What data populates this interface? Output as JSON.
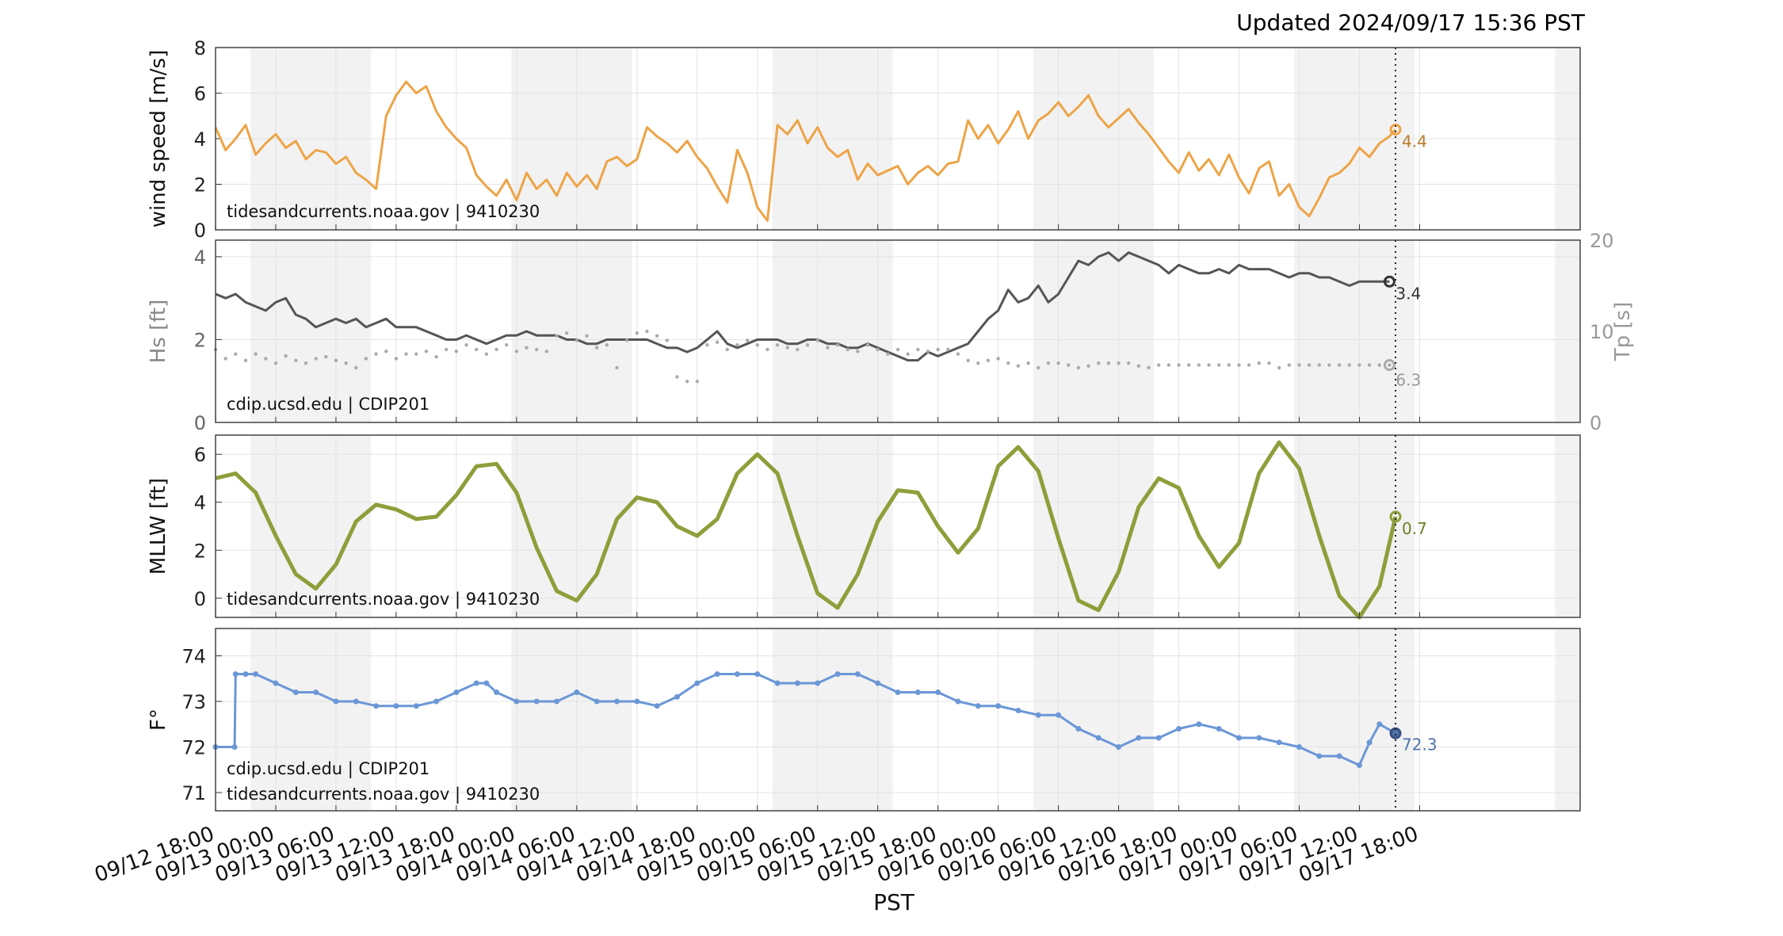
{
  "header": {
    "updated": "Updated 2024/09/17 15:36 PST"
  },
  "xaxis": {
    "label": "PST",
    "ticks": [
      "09/12 18:00",
      "09/13 00:00",
      "09/13 06:00",
      "09/13 12:00",
      "09/13 18:00",
      "09/14 00:00",
      "09/14 06:00",
      "09/14 12:00",
      "09/14 18:00",
      "09/15 00:00",
      "09/15 06:00",
      "09/15 12:00",
      "09/15 18:00",
      "09/16 00:00",
      "09/16 06:00",
      "09/16 12:00",
      "09/16 18:00",
      "09/17 00:00",
      "09/17 06:00",
      "09/17 12:00",
      "09/17 18:00"
    ],
    "range_hours": [
      0,
      136
    ],
    "current_hour": 117.6
  },
  "night_shading": [
    [
      3.5,
      15.5
    ],
    [
      29.5,
      41.5
    ],
    [
      55.5,
      67.5
    ],
    [
      81.5,
      93.5
    ],
    [
      107.5,
      119.5
    ],
    [
      133.5,
      136
    ]
  ],
  "chart_data": [
    {
      "type": "line",
      "id": "wind",
      "ylabel": "wind speed [m/s]",
      "ylim": [
        0,
        8
      ],
      "yticks": [
        0,
        2,
        4,
        6,
        8
      ],
      "source": "tidesandcurrents.noaa.gov | 9410230",
      "last_label": "4.4",
      "color": "#eda447",
      "series": [
        {
          "x": [
            0,
            1,
            2,
            3,
            4,
            5,
            6,
            7,
            8,
            9,
            10,
            11,
            12,
            13,
            14,
            15,
            16,
            17,
            18,
            19,
            20,
            21,
            22,
            23,
            24,
            25,
            26,
            27,
            28,
            29,
            30,
            31,
            32,
            33,
            34,
            35,
            36,
            37,
            38,
            39,
            40,
            41,
            42,
            43,
            44,
            45,
            46,
            47,
            48,
            49,
            50,
            51,
            52,
            53,
            54,
            55,
            56,
            57,
            58,
            59,
            60,
            61,
            62,
            63,
            64,
            65,
            66,
            67,
            68,
            69,
            70,
            71,
            72,
            73,
            74,
            75,
            76,
            77,
            78,
            79,
            80,
            81,
            82,
            83,
            84,
            85,
            86,
            87,
            88,
            89,
            90,
            91,
            92,
            93,
            94,
            95,
            96,
            97,
            98,
            99,
            100,
            101,
            102,
            103,
            104,
            105,
            106,
            107,
            108,
            109,
            110,
            111,
            112,
            113,
            114,
            115,
            116,
            117,
            117.6
          ],
          "values": [
            4.5,
            3.5,
            4.0,
            4.6,
            3.3,
            3.8,
            4.2,
            3.6,
            3.9,
            3.1,
            3.5,
            3.4,
            2.9,
            3.2,
            2.5,
            2.2,
            1.8,
            5.0,
            5.9,
            6.5,
            6.0,
            6.3,
            5.2,
            4.5,
            4.0,
            3.6,
            2.4,
            1.9,
            1.5,
            2.2,
            1.3,
            2.5,
            1.8,
            2.2,
            1.5,
            2.5,
            1.9,
            2.4,
            1.8,
            3.0,
            3.2,
            2.8,
            3.1,
            4.5,
            4.1,
            3.8,
            3.4,
            3.9,
            3.2,
            2.7,
            1.9,
            1.2,
            3.5,
            2.5,
            1.0,
            0.4,
            4.6,
            4.2,
            4.8,
            3.8,
            4.5,
            3.6,
            3.2,
            3.5,
            2.2,
            2.9,
            2.4,
            2.6,
            2.8,
            2.0,
            2.5,
            2.8,
            2.4,
            2.9,
            3.0,
            4.8,
            4.0,
            4.6,
            3.8,
            4.4,
            5.2,
            4.0,
            4.8,
            5.1,
            5.6,
            5.0,
            5.4,
            5.9,
            5.0,
            4.5,
            4.9,
            5.3,
            4.7,
            4.2,
            3.6,
            3.0,
            2.5,
            3.4,
            2.6,
            3.1,
            2.4,
            3.3,
            2.3,
            1.6,
            2.7,
            3.0,
            1.5,
            2.0,
            1.0,
            0.6,
            1.4,
            2.3,
            2.5,
            2.9,
            3.6,
            3.2,
            3.8,
            4.1,
            4.4
          ]
        }
      ]
    },
    {
      "type": "line",
      "id": "waves",
      "ylabel": "Hs [ft]",
      "ylabel_right": "Tp [s]",
      "ylim": [
        0,
        4.4
      ],
      "yticks": [
        0,
        2,
        4
      ],
      "ylim_right": [
        0,
        20
      ],
      "yticks_right": [
        0,
        10,
        20
      ],
      "source": "cdip.ucsd.edu | CDIP201",
      "last_label": "3.4",
      "last_label_right": "6.3",
      "color": "#555555",
      "color_right": "#aaaaaa",
      "series": [
        {
          "x": [
            0,
            1,
            2,
            3,
            4,
            5,
            6,
            7,
            8,
            9,
            10,
            11,
            12,
            13,
            14,
            15,
            16,
            17,
            18,
            19,
            20,
            21,
            22,
            23,
            24,
            25,
            26,
            27,
            28,
            29,
            30,
            31,
            32,
            33,
            34,
            35,
            36,
            37,
            38,
            39,
            40,
            41,
            42,
            43,
            44,
            45,
            46,
            47,
            48,
            49,
            50,
            51,
            52,
            53,
            54,
            55,
            56,
            57,
            58,
            59,
            60,
            61,
            62,
            63,
            64,
            65,
            66,
            67,
            68,
            69,
            70,
            71,
            72,
            73,
            74,
            75,
            76,
            77,
            78,
            79,
            80,
            81,
            82,
            83,
            84,
            85,
            86,
            87,
            88,
            89,
            90,
            91,
            92,
            93,
            94,
            95,
            96,
            97,
            98,
            99,
            100,
            101,
            102,
            103,
            104,
            105,
            106,
            107,
            108,
            109,
            110,
            111,
            112,
            113,
            114,
            115,
            116,
            117
          ],
          "values": [
            3.1,
            3.0,
            3.1,
            2.9,
            2.8,
            2.7,
            2.9,
            3.0,
            2.6,
            2.5,
            2.3,
            2.4,
            2.5,
            2.4,
            2.5,
            2.3,
            2.4,
            2.5,
            2.3,
            2.3,
            2.3,
            2.2,
            2.1,
            2.0,
            2.0,
            2.1,
            2.0,
            1.9,
            2.0,
            2.1,
            2.1,
            2.2,
            2.1,
            2.1,
            2.1,
            2.0,
            2.0,
            1.9,
            1.9,
            2.0,
            2.0,
            2.0,
            2.0,
            2.0,
            1.9,
            1.8,
            1.8,
            1.7,
            1.8,
            2.0,
            2.2,
            1.9,
            1.8,
            1.9,
            2.0,
            2.0,
            2.0,
            1.9,
            1.9,
            2.0,
            2.0,
            1.9,
            1.9,
            1.8,
            1.8,
            1.9,
            1.8,
            1.7,
            1.6,
            1.5,
            1.5,
            1.7,
            1.6,
            1.7,
            1.8,
            1.9,
            2.2,
            2.5,
            2.7,
            3.2,
            2.9,
            3.0,
            3.3,
            2.9,
            3.1,
            3.5,
            3.9,
            3.8,
            4.0,
            4.1,
            3.9,
            4.1,
            4.0,
            3.9,
            3.8,
            3.6,
            3.8,
            3.7,
            3.6,
            3.6,
            3.7,
            3.6,
            3.8,
            3.7,
            3.7,
            3.7,
            3.6,
            3.5,
            3.6,
            3.6,
            3.5,
            3.5,
            3.4,
            3.3,
            3.4,
            3.4,
            3.4,
            3.4
          ]
        },
        {
          "x": [
            0,
            1,
            2,
            3,
            4,
            5,
            6,
            7,
            8,
            9,
            10,
            11,
            12,
            13,
            14,
            15,
            16,
            17,
            18,
            19,
            20,
            21,
            22,
            23,
            24,
            25,
            26,
            27,
            28,
            29,
            30,
            31,
            32,
            33,
            34,
            35,
            36,
            37,
            38,
            39,
            40,
            41,
            42,
            43,
            44,
            45,
            46,
            47,
            48,
            49,
            50,
            51,
            52,
            53,
            54,
            55,
            56,
            57,
            58,
            59,
            60,
            61,
            62,
            63,
            64,
            65,
            66,
            67,
            68,
            69,
            70,
            71,
            72,
            73,
            74,
            75,
            76,
            77,
            78,
            79,
            80,
            81,
            82,
            83,
            84,
            85,
            86,
            87,
            88,
            89,
            90,
            91,
            92,
            93,
            94,
            95,
            96,
            97,
            98,
            99,
            100,
            101,
            102,
            103,
            104,
            105,
            106,
            107,
            108,
            109,
            110,
            111,
            112,
            113,
            114,
            115,
            116,
            117
          ],
          "values": [
            8.0,
            7.0,
            7.5,
            6.8,
            7.5,
            7.0,
            6.5,
            7.3,
            6.8,
            6.5,
            7.0,
            7.2,
            6.8,
            6.5,
            6.0,
            7.0,
            7.5,
            7.8,
            7.0,
            7.5,
            7.5,
            7.8,
            7.2,
            8.0,
            7.8,
            8.5,
            8.0,
            7.5,
            8.0,
            8.5,
            7.8,
            8.2,
            8.0,
            7.8,
            9.5,
            9.8,
            9.0,
            9.5,
            8.2,
            8.5,
            6.0,
            9.0,
            9.8,
            10.0,
            9.5,
            9.0,
            5.0,
            4.5,
            4.5,
            8.5,
            8.8,
            8.0,
            8.5,
            9.0,
            8.5,
            8.0,
            8.5,
            8.2,
            8.0,
            8.5,
            9.0,
            8.2,
            8.5,
            8.0,
            7.8,
            8.5,
            8.0,
            7.5,
            8.0,
            7.5,
            8.0,
            7.8,
            8.0,
            8.0,
            7.5,
            6.8,
            6.5,
            6.8,
            7.0,
            6.5,
            6.2,
            6.5,
            6.0,
            6.5,
            6.5,
            6.3,
            6.0,
            6.2,
            6.5,
            6.5,
            6.5,
            6.5,
            6.2,
            6.0,
            6.3,
            6.3,
            6.3,
            6.3,
            6.3,
            6.3,
            6.3,
            6.3,
            6.3,
            6.3,
            6.5,
            6.5,
            6.0,
            6.3,
            6.3,
            6.3,
            6.3,
            6.3,
            6.3,
            6.3,
            6.3,
            6.3,
            6.3,
            6.3
          ]
        }
      ]
    },
    {
      "type": "line",
      "id": "tide",
      "ylabel": "MLLW [ft]",
      "ylim": [
        -0.8,
        6.8
      ],
      "yticks": [
        0,
        2,
        4,
        6
      ],
      "source": "tidesandcurrents.noaa.gov | 9410230",
      "last_label": "0.7",
      "color": "#8f9e3a",
      "series": [
        {
          "x": [
            0,
            2,
            4,
            6,
            8,
            10,
            12,
            14,
            16,
            18,
            20,
            22,
            24,
            26,
            28,
            30,
            32,
            34,
            36,
            38,
            40,
            42,
            44,
            46,
            48,
            50,
            52,
            54,
            56,
            58,
            60,
            62,
            64,
            66,
            68,
            70,
            72,
            74,
            76,
            78,
            80,
            82,
            84,
            86,
            88,
            90,
            92,
            94,
            96,
            98,
            100,
            102,
            104,
            106,
            108,
            110,
            112,
            114,
            116,
            117.6
          ],
          "values": [
            5.0,
            5.2,
            4.4,
            2.6,
            1.0,
            0.4,
            1.4,
            3.2,
            3.9,
            3.7,
            3.3,
            3.4,
            4.3,
            5.5,
            5.6,
            4.4,
            2.1,
            0.3,
            -0.1,
            1.0,
            3.3,
            4.2,
            4.0,
            3.0,
            2.6,
            3.3,
            5.2,
            6.0,
            5.2,
            2.6,
            0.2,
            -0.4,
            1.0,
            3.2,
            4.5,
            4.4,
            3.0,
            1.9,
            2.9,
            5.5,
            6.3,
            5.3,
            2.5,
            -0.1,
            -0.5,
            1.1,
            3.8,
            5.0,
            4.6,
            2.6,
            1.3,
            2.3,
            5.2,
            6.5,
            5.4,
            2.6,
            0.1,
            -0.8,
            0.5,
            3.4
          ]
        }
      ]
    },
    {
      "type": "line",
      "id": "temp",
      "ylabel": "F°",
      "ylim": [
        70.6,
        74.6
      ],
      "yticks": [
        71,
        72,
        73,
        74
      ],
      "source": "cdip.ucsd.edu | CDIP201",
      "source2": "tidesandcurrents.noaa.gov | 9410230",
      "last_label": "72.3",
      "color": "#6b97d6",
      "series": [
        {
          "x": [
            0,
            1.9,
            2,
            3,
            4,
            6,
            8,
            10,
            12,
            14,
            16,
            18,
            20,
            22,
            24,
            26,
            27,
            28,
            30,
            32,
            34,
            36,
            38,
            40,
            42,
            44,
            46,
            48,
            50,
            52,
            54,
            56,
            58,
            60,
            62,
            64,
            66,
            68,
            70,
            72,
            74,
            76,
            78,
            80,
            82,
            84,
            86,
            88,
            90,
            92,
            94,
            96,
            98,
            100,
            102,
            104,
            106,
            108,
            110,
            112,
            114,
            115,
            116,
            117.6
          ],
          "values": [
            72.0,
            72.0,
            73.6,
            73.6,
            73.6,
            73.4,
            73.2,
            73.2,
            73.0,
            73.0,
            72.9,
            72.9,
            72.9,
            73.0,
            73.2,
            73.4,
            73.4,
            73.2,
            73.0,
            73.0,
            73.0,
            73.2,
            73.0,
            73.0,
            73.0,
            72.9,
            73.1,
            73.4,
            73.6,
            73.6,
            73.6,
            73.4,
            73.4,
            73.4,
            73.6,
            73.6,
            73.4,
            73.2,
            73.2,
            73.2,
            73.0,
            72.9,
            72.9,
            72.8,
            72.7,
            72.7,
            72.4,
            72.2,
            72.0,
            72.2,
            72.2,
            72.4,
            72.5,
            72.4,
            72.2,
            72.2,
            72.1,
            72.0,
            71.8,
            71.8,
            71.6,
            72.1,
            72.5,
            72.3
          ]
        }
      ]
    }
  ]
}
